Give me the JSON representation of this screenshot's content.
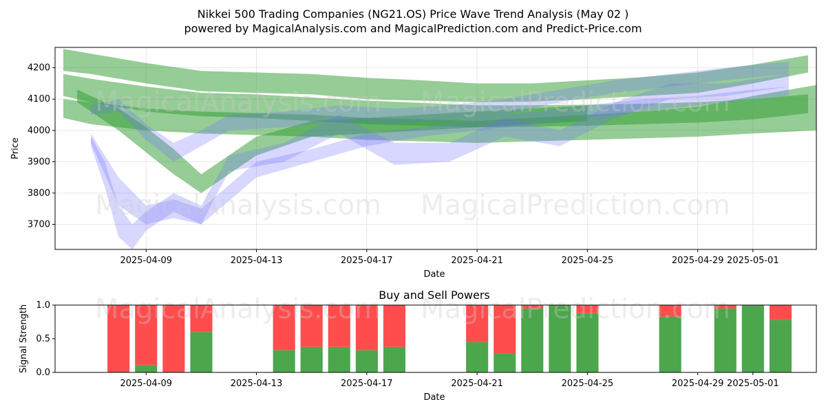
{
  "title_line1": "Nikkei 500 Trading Companies (NG21.OS) Price Wave Trend Analysis (May 02 )",
  "title_line2": "powered by MagicalAnalysis.com and MagicalPrediction.com and Predict-Price.com",
  "watermarks": [
    "MagicalAnalysis.com",
    "MagicalPrediction.com"
  ],
  "colors": {
    "buy": "#4ca64c",
    "sell": "#ff4d4d",
    "green_band": "#2e9b2e",
    "blue_band": "#6f6fff"
  },
  "chart_data": [
    {
      "type": "area",
      "title": "",
      "xlabel": "Date",
      "ylabel": "Price",
      "ylim": [
        3620,
        4265
      ],
      "yticks": [
        3700,
        3800,
        3900,
        4000,
        4100,
        4200
      ],
      "xticks": [
        "2025-04-09",
        "2025-04-13",
        "2025-04-17",
        "2025-04-21",
        "2025-04-25",
        "2025-04-29",
        "2025-05-01"
      ],
      "xtick_days": [
        2,
        6,
        10,
        14,
        18,
        22,
        24
      ],
      "xrange_days": [
        -1.3,
        26.3
      ],
      "day0": "2025-04-07",
      "series": [
        {
          "name": "green-1",
          "color": "green",
          "days": [
            -1,
            0,
            2,
            4,
            6,
            8,
            10,
            12,
            14,
            16,
            18,
            20,
            22,
            24,
            26
          ],
          "upper": [
            4260,
            4245,
            4215,
            4190,
            4185,
            4180,
            4168,
            4160,
            4150,
            4150,
            4160,
            4170,
            4185,
            4210,
            4240
          ],
          "lower": [
            4190,
            4180,
            4150,
            4125,
            4120,
            4115,
            4100,
            4095,
            4090,
            4092,
            4100,
            4110,
            4120,
            4150,
            4185
          ]
        },
        {
          "name": "green-2",
          "color": "green",
          "days": [
            -1,
            0,
            2,
            4,
            6,
            8,
            10,
            12,
            14,
            16,
            18,
            20,
            22,
            24,
            26
          ],
          "upper": [
            4180,
            4165,
            4140,
            4120,
            4115,
            4105,
            4095,
            4088,
            4080,
            4080,
            4082,
            4085,
            4090,
            4100,
            4115
          ],
          "lower": [
            4110,
            4090,
            4060,
            4045,
            4040,
            4030,
            4020,
            4015,
            4010,
            4012,
            4015,
            4020,
            4025,
            4035,
            4055
          ]
        },
        {
          "name": "green-3",
          "color": "green",
          "days": [
            -1,
            0,
            2,
            4,
            6,
            8,
            10,
            12,
            14,
            16,
            18,
            20,
            22,
            24,
            26.3
          ],
          "upper": [
            4100,
            4090,
            4070,
            4060,
            4055,
            4050,
            4040,
            4035,
            4030,
            4040,
            4050,
            4060,
            4075,
            4110,
            4145
          ],
          "lower": [
            4040,
            4020,
            4000,
            3990,
            3985,
            3980,
            3970,
            3965,
            3960,
            3965,
            3970,
            3975,
            3980,
            3990,
            4000
          ]
        },
        {
          "name": "green-4",
          "color": "green",
          "days": [
            -0.5,
            0,
            1,
            2,
            3,
            4,
            6,
            8,
            10,
            12,
            14,
            16,
            18
          ],
          "upper": [
            4130,
            4110,
            4070,
            4010,
            3940,
            3860,
            3980,
            4030,
            4040,
            4050,
            4060,
            4070,
            4080
          ],
          "lower": [
            4090,
            4060,
            4000,
            3930,
            3860,
            3800,
            3920,
            3980,
            3990,
            4000,
            4010,
            4020,
            4030
          ]
        },
        {
          "name": "blue-1",
          "color": "blue",
          "days": [
            0,
            1,
            2,
            3,
            4,
            6,
            8,
            10,
            12,
            14,
            16,
            18,
            20,
            22,
            24,
            25.3
          ],
          "upper": [
            3990,
            3850,
            3760,
            3780,
            3750,
            3900,
            3940,
            3990,
            4010,
            4040,
            4060,
            4080,
            4100,
            4110,
            4130,
            4140
          ],
          "lower": [
            3960,
            3760,
            3700,
            3720,
            3700,
            3850,
            3900,
            3950,
            3980,
            4000,
            4020,
            4040,
            4060,
            4080,
            4100,
            4110
          ]
        },
        {
          "name": "blue-2",
          "color": "blue",
          "days": [
            0,
            0.5,
            1,
            1.5,
            2,
            3,
            4,
            5,
            7,
            9,
            11,
            13,
            15,
            17,
            19,
            21,
            23,
            25.3
          ],
          "upper": [
            3980,
            3900,
            3760,
            3700,
            3740,
            3800,
            3760,
            3920,
            3960,
            4050,
            3960,
            3960,
            4040,
            4000,
            4090,
            4150,
            4150,
            4180
          ],
          "lower": [
            3950,
            3820,
            3660,
            3620,
            3680,
            3740,
            3700,
            3870,
            3900,
            3990,
            3890,
            3900,
            3980,
            3950,
            4040,
            4100,
            4110,
            4140
          ]
        },
        {
          "name": "blue-3",
          "color": "blue",
          "days": [
            0,
            1,
            2,
            3,
            4,
            5,
            7,
            9,
            11,
            13,
            15,
            17,
            19,
            21,
            23,
            25.3
          ],
          "upper": [
            4080,
            4100,
            4020,
            3960,
            4000,
            4050,
            4060,
            4080,
            4070,
            4080,
            4100,
            4130,
            4160,
            4180,
            4200,
            4220
          ],
          "lower": [
            4050,
            4060,
            3970,
            3900,
            3950,
            4000,
            4010,
            4030,
            4020,
            4030,
            4050,
            4090,
            4120,
            4140,
            4160,
            4180
          ]
        }
      ]
    },
    {
      "type": "bar",
      "title": "Buy and Sell Powers",
      "xlabel": "Date",
      "ylabel": "Signal Strength",
      "ylim": [
        0,
        1.0
      ],
      "yticks": [
        "0.0",
        "0.5",
        "1.0"
      ],
      "xticks": [
        "2025-04-09",
        "2025-04-13",
        "2025-04-17",
        "2025-04-21",
        "2025-04-25",
        "2025-04-29",
        "2025-05-01"
      ],
      "xtick_days": [
        2,
        6,
        10,
        14,
        18,
        22,
        24
      ],
      "xrange_days": [
        -1.3,
        26.3
      ],
      "days": [
        1,
        2,
        3,
        4,
        7,
        8,
        9,
        10,
        11,
        14,
        15,
        16,
        17,
        18,
        21,
        23,
        24,
        25
      ],
      "buy": [
        0.0,
        0.11,
        0.0,
        0.6,
        0.33,
        0.38,
        0.38,
        0.33,
        0.38,
        0.45,
        0.28,
        0.95,
        1.0,
        0.88,
        0.83,
        0.95,
        1.0,
        0.78
      ],
      "sell": [
        1.0,
        0.89,
        1.0,
        0.4,
        0.67,
        0.62,
        0.62,
        0.67,
        0.62,
        0.55,
        0.72,
        0.05,
        0.0,
        0.12,
        0.17,
        0.05,
        0.0,
        0.22
      ]
    }
  ]
}
